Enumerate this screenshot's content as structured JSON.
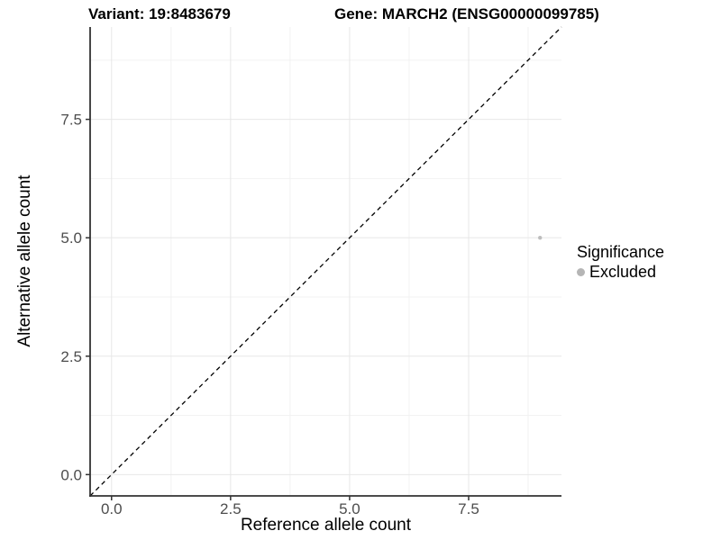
{
  "chart_data": {
    "type": "scatter",
    "title_left": "Variant: 19:8483679",
    "title_right": "Gene: MARCH2 (ENSG00000099785)",
    "xlabel": "Reference allele count",
    "ylabel": "Alternative allele count",
    "xlim": [
      -0.45,
      9.45
    ],
    "ylim": [
      -0.45,
      9.45
    ],
    "xticks": {
      "values": [
        0,
        2.5,
        5,
        7.5
      ],
      "labels": [
        "0.0",
        "2.5",
        "5.0",
        "7.5"
      ]
    },
    "yticks": {
      "values": [
        0,
        2.5,
        5,
        7.5
      ],
      "labels": [
        "0.0",
        "2.5",
        "5.0",
        "7.5"
      ]
    },
    "minor_ticks": [
      1.25,
      3.75,
      6.25,
      8.75
    ],
    "grid": "major+minor on white background",
    "series": [
      {
        "name": "Excluded",
        "color": "#bdbdbd",
        "point_radius": 2.2,
        "points": [
          {
            "x": 9,
            "y": 5
          }
        ]
      }
    ],
    "reference_line": {
      "type": "identity",
      "style": "dashed",
      "color": "#000000"
    },
    "legend": {
      "position": "right",
      "title": "Significance",
      "items": [
        {
          "label": "Excluded",
          "color": "#b5b5b5"
        }
      ]
    }
  },
  "colors": {
    "background": "#ffffff",
    "axis_line": "#333333",
    "tick_mark": "#333333",
    "tick_label": "#4d4d4d",
    "grid_major": "#e7e7e7",
    "grid_minor": "#f2f2f2"
  }
}
